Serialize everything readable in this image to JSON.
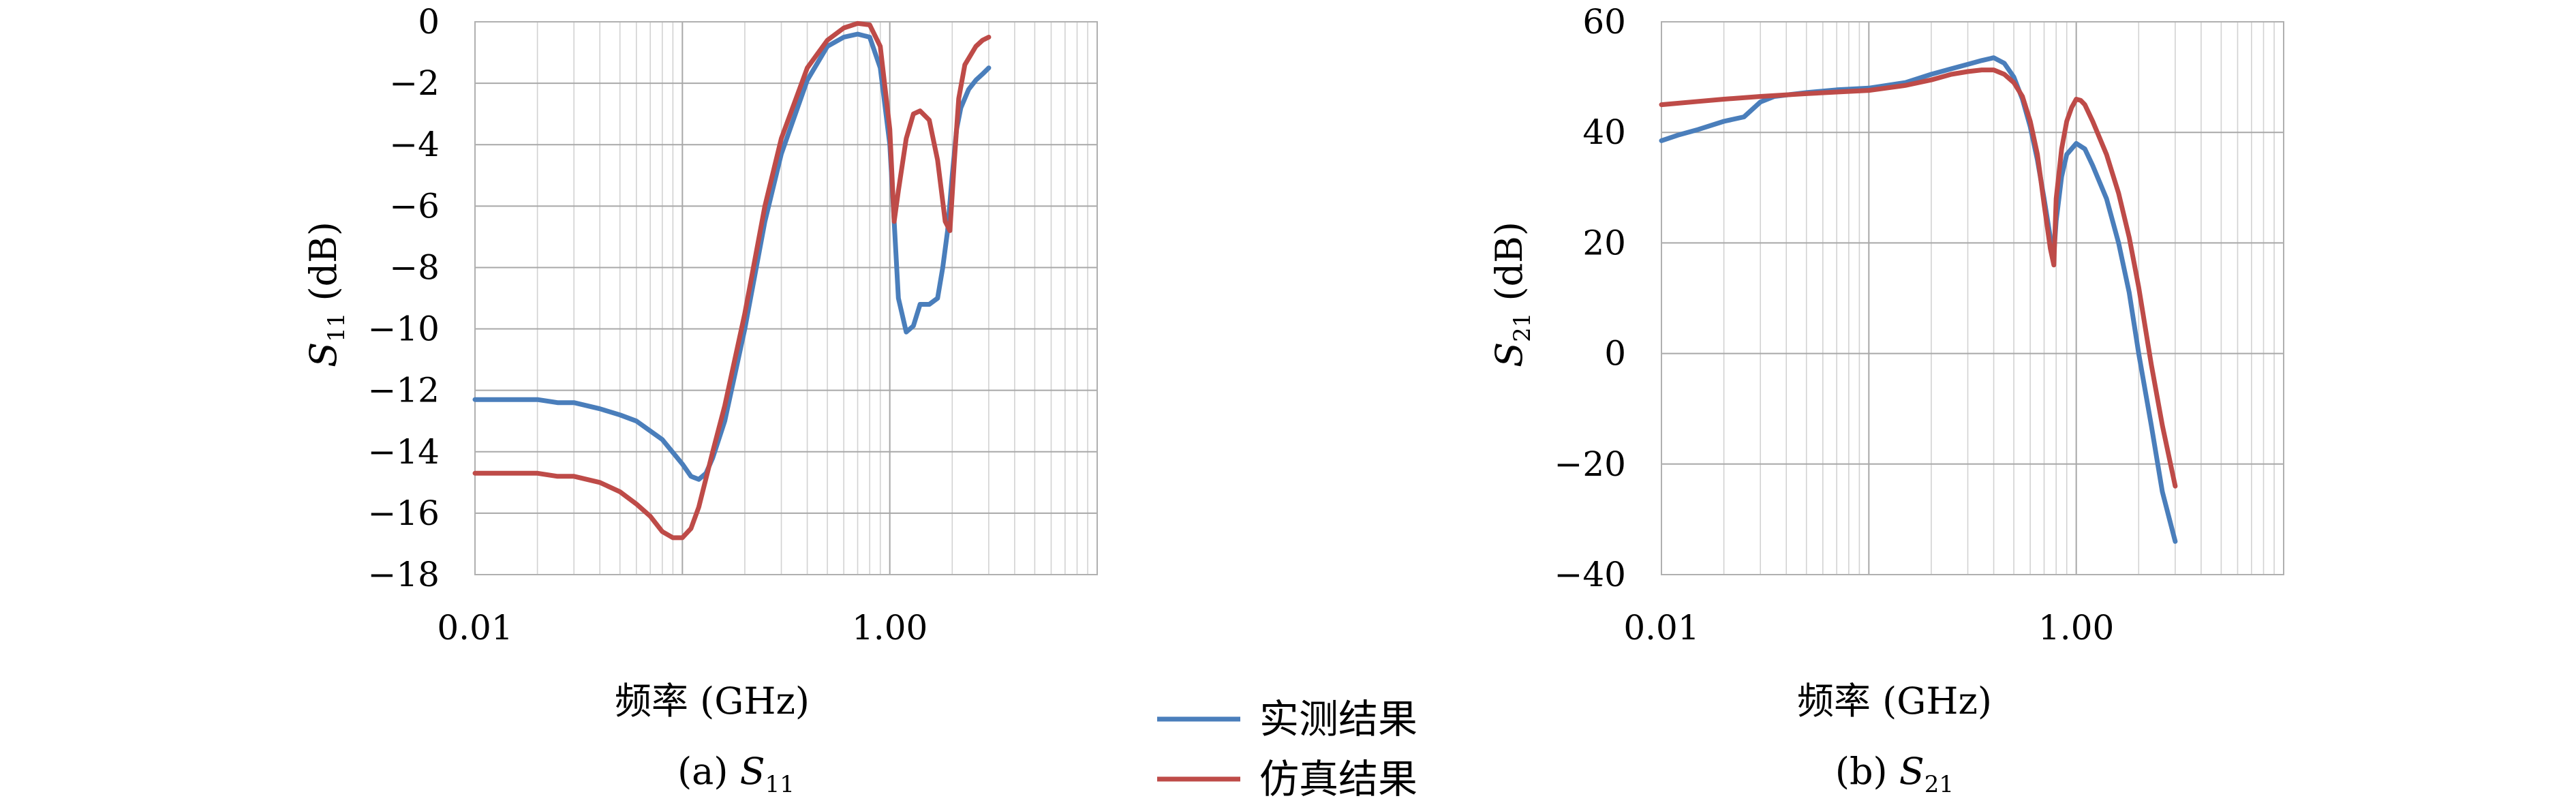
{
  "colors": {
    "measured": "#4a7ebb",
    "simulated": "#be4b48",
    "grid": "#b0b0b0"
  },
  "legend": {
    "measured": "实测结果",
    "simulated": "仿真结果"
  },
  "chart_data": [
    {
      "type": "line",
      "caption": "(a) S11",
      "caption_prefix": "(a) ",
      "caption_var": "S",
      "caption_sub": "11",
      "xlabel": "频率 (GHz)",
      "ylabel_var": "S",
      "ylabel_sub": "11",
      "ylabel_unit": " (dB)",
      "xscale": "log",
      "xlim": [
        0.01,
        10
      ],
      "ylim": [
        -18,
        0
      ],
      "xticks": [
        0.01,
        1
      ],
      "xtick_labels": [
        "0.01",
        "1.00"
      ],
      "yticks": [
        0,
        -2,
        -4,
        -6,
        -8,
        -10,
        -12,
        -14,
        -16,
        -18
      ],
      "ytick_labels": [
        "0",
        "−2",
        "−4",
        "−6",
        "−8",
        "−10",
        "−12",
        "−14",
        "−16",
        "−18"
      ],
      "grid": true,
      "series": [
        {
          "name": "实测结果",
          "x": [
            0.01,
            0.015,
            0.02,
            0.025,
            0.03,
            0.04,
            0.05,
            0.06,
            0.08,
            0.1,
            0.11,
            0.12,
            0.13,
            0.14,
            0.16,
            0.2,
            0.25,
            0.3,
            0.4,
            0.5,
            0.6,
            0.7,
            0.8,
            0.9,
            1.0,
            1.05,
            1.1,
            1.2,
            1.3,
            1.4,
            1.55,
            1.7,
            1.8,
            1.9,
            2.0,
            2.1,
            2.2,
            2.4,
            2.6,
            2.8,
            3.0
          ],
          "y": [
            -12.3,
            -12.3,
            -12.3,
            -12.4,
            -12.4,
            -12.6,
            -12.8,
            -13.0,
            -13.6,
            -14.4,
            -14.8,
            -14.9,
            -14.7,
            -14.2,
            -13.0,
            -10.0,
            -6.5,
            -4.3,
            -1.9,
            -0.8,
            -0.5,
            -0.4,
            -0.5,
            -1.5,
            -4.0,
            -6.5,
            -9.0,
            -10.1,
            -9.9,
            -9.2,
            -9.2,
            -9.0,
            -8.0,
            -6.8,
            -5.0,
            -3.5,
            -2.8,
            -2.2,
            -1.9,
            -1.7,
            -1.5
          ]
        },
        {
          "name": "仿真结果",
          "x": [
            0.01,
            0.015,
            0.02,
            0.025,
            0.03,
            0.04,
            0.05,
            0.06,
            0.07,
            0.08,
            0.09,
            0.1,
            0.11,
            0.12,
            0.14,
            0.16,
            0.2,
            0.25,
            0.3,
            0.4,
            0.5,
            0.6,
            0.7,
            0.8,
            0.9,
            1.0,
            1.05,
            1.1,
            1.2,
            1.3,
            1.4,
            1.55,
            1.7,
            1.85,
            1.95,
            2.05,
            2.15,
            2.3,
            2.6,
            2.8,
            3.0
          ],
          "y": [
            -14.7,
            -14.7,
            -14.7,
            -14.8,
            -14.8,
            -15.0,
            -15.3,
            -15.7,
            -16.1,
            -16.6,
            -16.8,
            -16.8,
            -16.5,
            -15.8,
            -14.0,
            -12.5,
            -9.5,
            -6.0,
            -3.8,
            -1.5,
            -0.6,
            -0.2,
            -0.05,
            -0.1,
            -0.8,
            -3.5,
            -6.5,
            -5.5,
            -3.8,
            -3.0,
            -2.9,
            -3.2,
            -4.5,
            -6.5,
            -6.8,
            -4.5,
            -2.5,
            -1.4,
            -0.8,
            -0.6,
            -0.5
          ]
        }
      ]
    },
    {
      "type": "line",
      "caption": "(b) S21",
      "caption_prefix": "(b) ",
      "caption_var": "S",
      "caption_sub": "21",
      "xlabel": "频率 (GHz)",
      "ylabel_var": "S",
      "ylabel_sub": "21",
      "ylabel_unit": " (dB)",
      "xscale": "log",
      "xlim": [
        0.01,
        10
      ],
      "ylim": [
        -40,
        60
      ],
      "xticks": [
        0.01,
        1
      ],
      "xtick_labels": [
        "0.01",
        "1.00"
      ],
      "yticks": [
        60,
        40,
        20,
        0,
        -20,
        -40
      ],
      "ytick_labels": [
        "60",
        "40",
        "20",
        "0",
        "−20",
        "−40"
      ],
      "grid": true,
      "series": [
        {
          "name": "实测结果",
          "x": [
            0.01,
            0.012,
            0.015,
            0.02,
            0.025,
            0.03,
            0.035,
            0.05,
            0.07,
            0.1,
            0.15,
            0.2,
            0.25,
            0.3,
            0.35,
            0.4,
            0.45,
            0.5,
            0.55,
            0.6,
            0.65,
            0.7,
            0.75,
            0.78,
            0.8,
            0.85,
            0.9,
            1.0,
            1.1,
            1.2,
            1.4,
            1.6,
            1.8,
            2.0,
            2.3,
            2.6,
            3.0
          ],
          "y": [
            38.5,
            39.5,
            40.5,
            42.0,
            42.8,
            45.5,
            46.5,
            47.2,
            47.7,
            48.0,
            49.0,
            50.5,
            51.5,
            52.3,
            53.0,
            53.5,
            52.5,
            50.0,
            46.0,
            41.0,
            35.0,
            28.0,
            21.0,
            18.0,
            24.0,
            32.0,
            36.0,
            38.0,
            37.0,
            34.0,
            28.0,
            20.0,
            11.0,
            0.0,
            -13.0,
            -25.0,
            -34.0
          ]
        },
        {
          "name": "仿真结果",
          "x": [
            0.01,
            0.015,
            0.02,
            0.03,
            0.05,
            0.07,
            0.1,
            0.15,
            0.2,
            0.25,
            0.3,
            0.35,
            0.4,
            0.45,
            0.5,
            0.55,
            0.6,
            0.65,
            0.7,
            0.75,
            0.78,
            0.8,
            0.85,
            0.9,
            0.95,
            1.0,
            1.05,
            1.1,
            1.2,
            1.4,
            1.6,
            1.8,
            2.0,
            2.3,
            2.6,
            3.0
          ],
          "y": [
            45.0,
            45.6,
            46.0,
            46.5,
            47.0,
            47.3,
            47.6,
            48.5,
            49.5,
            50.5,
            51.0,
            51.3,
            51.3,
            50.5,
            49.0,
            46.5,
            42.0,
            36.0,
            27.0,
            19.0,
            16.0,
            28.0,
            37.0,
            42.0,
            44.5,
            46.0,
            45.8,
            45.0,
            42.0,
            36.0,
            29.0,
            21.0,
            12.0,
            -2.0,
            -13.0,
            -24.0
          ]
        }
      ]
    }
  ]
}
